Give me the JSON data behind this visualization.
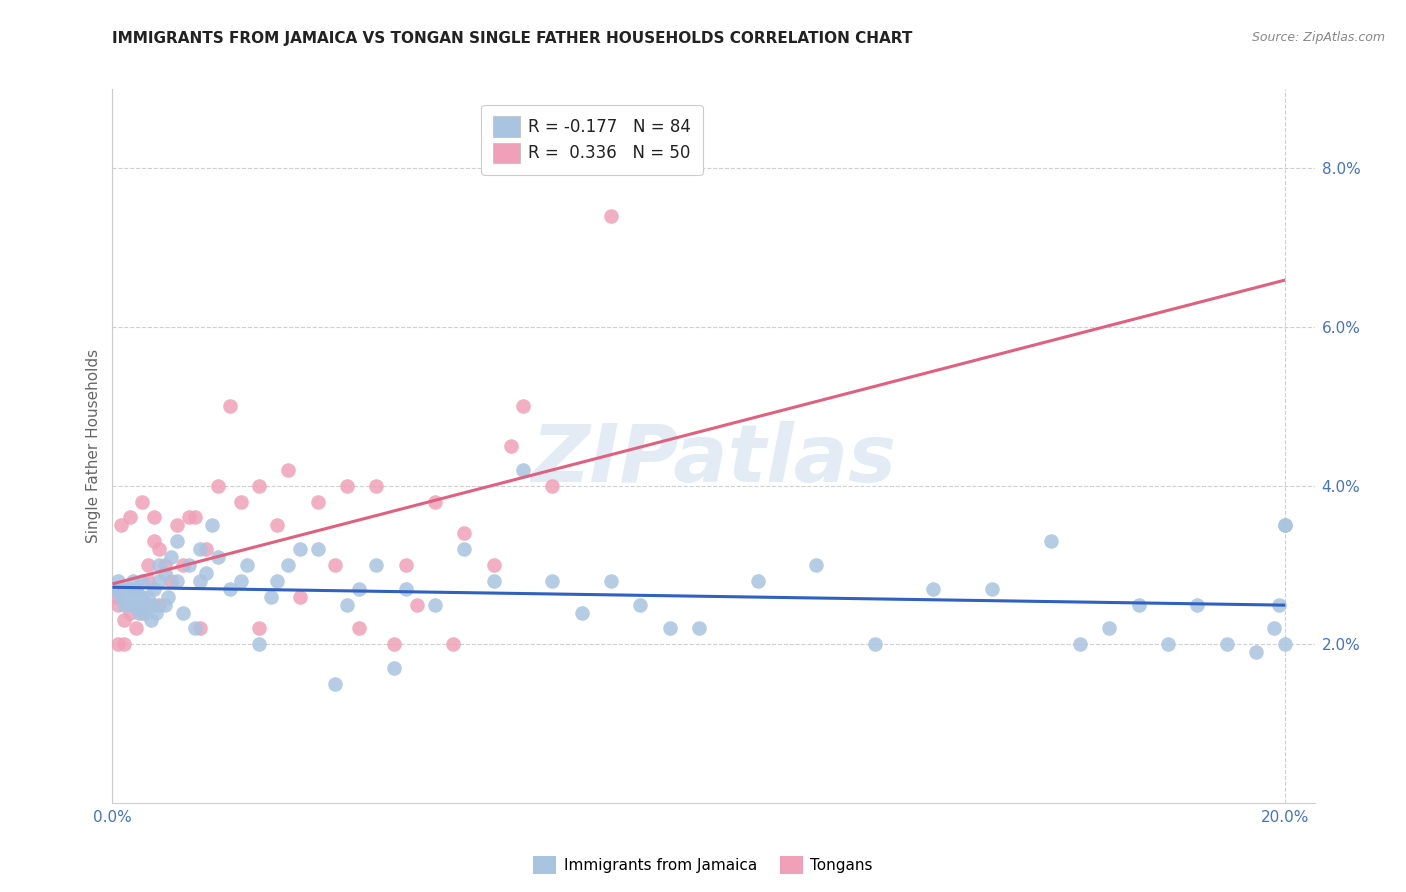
{
  "title": "IMMIGRANTS FROM JAMAICA VS TONGAN SINGLE FATHER HOUSEHOLDS CORRELATION CHART",
  "source": "Source: ZipAtlas.com",
  "ylabel": "Single Father Households",
  "xlim": [
    0.0,
    0.205
  ],
  "ylim": [
    0.0,
    0.09
  ],
  "xtick_positions": [
    0.0,
    0.2
  ],
  "xticklabels": [
    "0.0%",
    "20.0%"
  ],
  "ytick_positions": [
    0.02,
    0.04,
    0.06,
    0.08
  ],
  "yticklabels_right": [
    "2.0%",
    "4.0%",
    "6.0%",
    "8.0%"
  ],
  "grid_color": "#d0d0d0",
  "background_color": "#ffffff",
  "watermark": "ZIPatlas",
  "jamaica_color": "#a8c4e0",
  "tongan_color": "#f0a0b8",
  "jamaica_line_color": "#3060c0",
  "tongan_line_color": "#e06080",
  "title_color": "#222222",
  "axis_label_color": "#4472c4",
  "ylabel_color": "#666666",
  "jamaica_scatter_x": [
    0.0005,
    0.001,
    0.001,
    0.0015,
    0.002,
    0.002,
    0.0025,
    0.003,
    0.003,
    0.003,
    0.0035,
    0.004,
    0.004,
    0.004,
    0.0045,
    0.005,
    0.005,
    0.005,
    0.0055,
    0.006,
    0.006,
    0.0065,
    0.007,
    0.007,
    0.0075,
    0.008,
    0.008,
    0.009,
    0.009,
    0.0095,
    0.01,
    0.011,
    0.011,
    0.012,
    0.013,
    0.014,
    0.015,
    0.015,
    0.016,
    0.017,
    0.018,
    0.02,
    0.022,
    0.023,
    0.025,
    0.027,
    0.028,
    0.03,
    0.032,
    0.035,
    0.038,
    0.04,
    0.042,
    0.045,
    0.048,
    0.05,
    0.055,
    0.06,
    0.065,
    0.07,
    0.075,
    0.08,
    0.085,
    0.09,
    0.095,
    0.1,
    0.11,
    0.12,
    0.13,
    0.14,
    0.15,
    0.16,
    0.165,
    0.17,
    0.175,
    0.18,
    0.185,
    0.19,
    0.195,
    0.198,
    0.199,
    0.2,
    0.2,
    0.2
  ],
  "jamaica_scatter_y": [
    0.027,
    0.028,
    0.027,
    0.026,
    0.026,
    0.025,
    0.027,
    0.025,
    0.026,
    0.027,
    0.028,
    0.025,
    0.026,
    0.027,
    0.024,
    0.025,
    0.026,
    0.028,
    0.024,
    0.025,
    0.026,
    0.023,
    0.025,
    0.027,
    0.024,
    0.03,
    0.028,
    0.029,
    0.025,
    0.026,
    0.031,
    0.033,
    0.028,
    0.024,
    0.03,
    0.022,
    0.032,
    0.028,
    0.029,
    0.035,
    0.031,
    0.027,
    0.028,
    0.03,
    0.02,
    0.026,
    0.028,
    0.03,
    0.032,
    0.032,
    0.015,
    0.025,
    0.027,
    0.03,
    0.017,
    0.027,
    0.025,
    0.032,
    0.028,
    0.042,
    0.028,
    0.024,
    0.028,
    0.025,
    0.022,
    0.022,
    0.028,
    0.03,
    0.02,
    0.027,
    0.027,
    0.033,
    0.02,
    0.022,
    0.025,
    0.02,
    0.025,
    0.02,
    0.019,
    0.022,
    0.025,
    0.02,
    0.035,
    0.035
  ],
  "tongan_scatter_x": [
    0.0005,
    0.001,
    0.001,
    0.0015,
    0.002,
    0.002,
    0.003,
    0.003,
    0.004,
    0.004,
    0.005,
    0.005,
    0.006,
    0.006,
    0.007,
    0.007,
    0.008,
    0.008,
    0.009,
    0.01,
    0.011,
    0.012,
    0.013,
    0.014,
    0.015,
    0.016,
    0.018,
    0.02,
    0.022,
    0.025,
    0.025,
    0.028,
    0.03,
    0.032,
    0.035,
    0.038,
    0.04,
    0.042,
    0.045,
    0.048,
    0.05,
    0.052,
    0.055,
    0.058,
    0.06,
    0.065,
    0.068,
    0.07,
    0.075,
    0.085
  ],
  "tongan_scatter_y": [
    0.026,
    0.025,
    0.02,
    0.035,
    0.023,
    0.02,
    0.036,
    0.024,
    0.022,
    0.027,
    0.038,
    0.024,
    0.03,
    0.028,
    0.033,
    0.036,
    0.025,
    0.032,
    0.03,
    0.028,
    0.035,
    0.03,
    0.036,
    0.036,
    0.022,
    0.032,
    0.04,
    0.05,
    0.038,
    0.04,
    0.022,
    0.035,
    0.042,
    0.026,
    0.038,
    0.03,
    0.04,
    0.022,
    0.04,
    0.02,
    0.03,
    0.025,
    0.038,
    0.02,
    0.034,
    0.03,
    0.045,
    0.05,
    0.04,
    0.074
  ],
  "legend_r_entries": [
    {
      "label": "R = -0.177   N = 84",
      "color": "#a8c4e0"
    },
    {
      "label": "R =  0.336   N = 50",
      "color": "#f0a0b8"
    }
  ],
  "legend_bottom": [
    "Immigrants from Jamaica",
    "Tongans"
  ]
}
